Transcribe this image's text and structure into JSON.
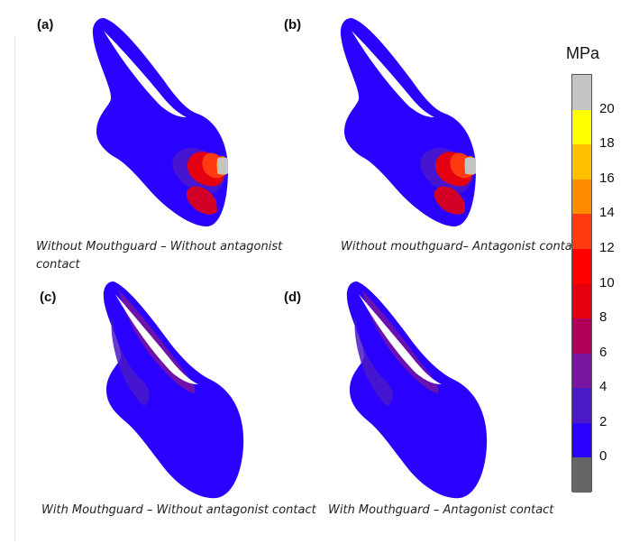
{
  "panels": [
    {
      "id": "a",
      "label": "(a)",
      "caption": "Without Mouthguard – Without antagonist contact",
      "stress": "high"
    },
    {
      "id": "b",
      "label": "(b)",
      "caption": "Without mouthguard– Antagonist contact",
      "stress": "high"
    },
    {
      "id": "c",
      "label": "(c)",
      "caption": "With Mouthguard – Without antagonist contact",
      "stress": "low"
    },
    {
      "id": "d",
      "label": "(d)",
      "caption": "With Mouthguard – Antagonist contact",
      "stress": "low"
    }
  ],
  "colorbar": {
    "unit": "MPa",
    "ticks": [
      "20",
      "18",
      "16",
      "14",
      "12",
      "10",
      "8",
      "6",
      "4",
      "2",
      "0"
    ],
    "colors_top_to_bottom": [
      "#c4c4c4",
      "#ffff00",
      "#ffc000",
      "#ff8c00",
      "#ff3a10",
      "#ff0000",
      "#e40010",
      "#b0005a",
      "#7a159e",
      "#4a19c8",
      "#2a00ff",
      "#666666"
    ]
  },
  "colors": {
    "base_blue": "#2a00ff",
    "mid_blue": "#4a19c8",
    "purple": "#7a159e",
    "red": "#ff0000",
    "orange": "#ff8c00",
    "contact_gray": "#c4c4c4"
  }
}
